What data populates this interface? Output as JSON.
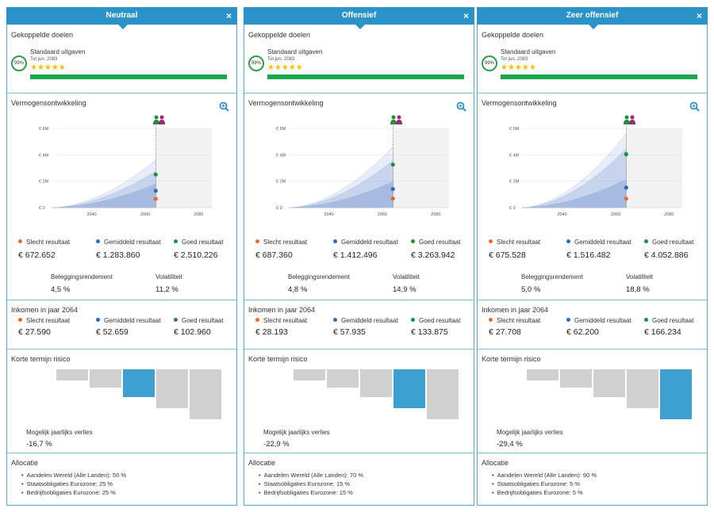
{
  "common": {
    "close_glyph": "×",
    "goals_title": "Gekoppelde doelen",
    "goal_name": "Standaard uitgaven",
    "goal_date": "Tot jun. 2083",
    "goal_pct": "99%",
    "goal_stars": "★★★★★",
    "goal_rating": 5,
    "goal_progress": 1.0,
    "wealth_title": "Vermogensontwikkeling",
    "legend_bad": "Slecht resultaat",
    "legend_avg": "Gemiddeld resultaat",
    "legend_good": "Goed resultaat",
    "return_label": "Beleggingsrendement",
    "vol_label": "Volatiliteit",
    "income_title": "Inkomen in jaar 2064",
    "risk_title": "Korte termijn risico",
    "risk_label": "Mogelijk jaarlijks verlies",
    "alloc_title": "Allocatie",
    "y_ticks": [
      "€ 6M",
      "€ 4M",
      "€ 2M",
      "€ 0"
    ],
    "x_ticks": [
      "2040",
      "2060",
      "2080"
    ]
  },
  "colors": {
    "header": "#2b93c9",
    "bad": "#e8692d",
    "avg": "#2d6db5",
    "good": "#1f8f3a",
    "band": "#8aa6d6",
    "risk_bar": "#d0d0d0",
    "risk_active": "#3ea0d0",
    "goal_bar": "#1aa64a"
  },
  "icons": {
    "close": "close-icon",
    "zoom": "zoom-icon",
    "people": "people-icon",
    "gauge": "gauge-icon",
    "stars": "star-icon"
  },
  "panels": [
    {
      "title": "Neutraal",
      "result_bad": "€ 672.652",
      "result_avg": "€ 1.283.860",
      "result_good": "€ 2.510.226",
      "return": "4,5 %",
      "volatility": "11,2 %",
      "income_bad": "€ 27.590",
      "income_avg": "€ 52.659",
      "income_good": "€ 102.960",
      "risk_value": "-16,7 %",
      "risk_active_index": 2,
      "alloc": [
        "Aandelen Wereld (Alle Landen): 50 %",
        "Staatsobligaties Eurozone: 25 %",
        "Bedrijfsobligaties Eurozone: 25 %"
      ],
      "markers": {
        "bad": 0.67,
        "avg": 1.28,
        "good": 2.51
      },
      "band_top": 3.6
    },
    {
      "title": "Offensief",
      "result_bad": "€ 687.360",
      "result_avg": "€ 1.412.496",
      "result_good": "€ 3.263.942",
      "return": "4,8 %",
      "volatility": "14,9 %",
      "income_bad": "€ 28.193",
      "income_avg": "€ 57.935",
      "income_good": "€ 133.875",
      "risk_value": "-22,9 %",
      "risk_active_index": 3,
      "alloc": [
        "Aandelen Wereld (Alle Landen): 70 %",
        "Staatsobligaties Eurozone: 15 %",
        "Bedrijfsobligaties Eurozone: 15 %"
      ],
      "markers": {
        "bad": 0.69,
        "avg": 1.41,
        "good": 3.26
      },
      "band_top": 4.6
    },
    {
      "title": "Zeer offensief",
      "result_bad": "€ 675.528",
      "result_avg": "€ 1.516.482",
      "result_good": "€ 4.052.886",
      "return": "5,0 %",
      "volatility": "18,8 %",
      "income_bad": "€ 27.708",
      "income_avg": "€ 62.200",
      "income_good": "€ 166.234",
      "risk_value": "-29,4 %",
      "risk_active_index": 4,
      "alloc": [
        "Aandelen Wereld (Alle Landen): 90 %",
        "Staatsobligaties Eurozone: 5 %",
        "Bedrijfsobligaties Eurozone: 5 %"
      ],
      "markers": {
        "bad": 0.68,
        "avg": 1.52,
        "good": 4.05
      },
      "band_top": 5.6
    }
  ],
  "risk_bars": [
    0.2,
    0.33,
    0.5,
    0.7,
    0.9
  ]
}
